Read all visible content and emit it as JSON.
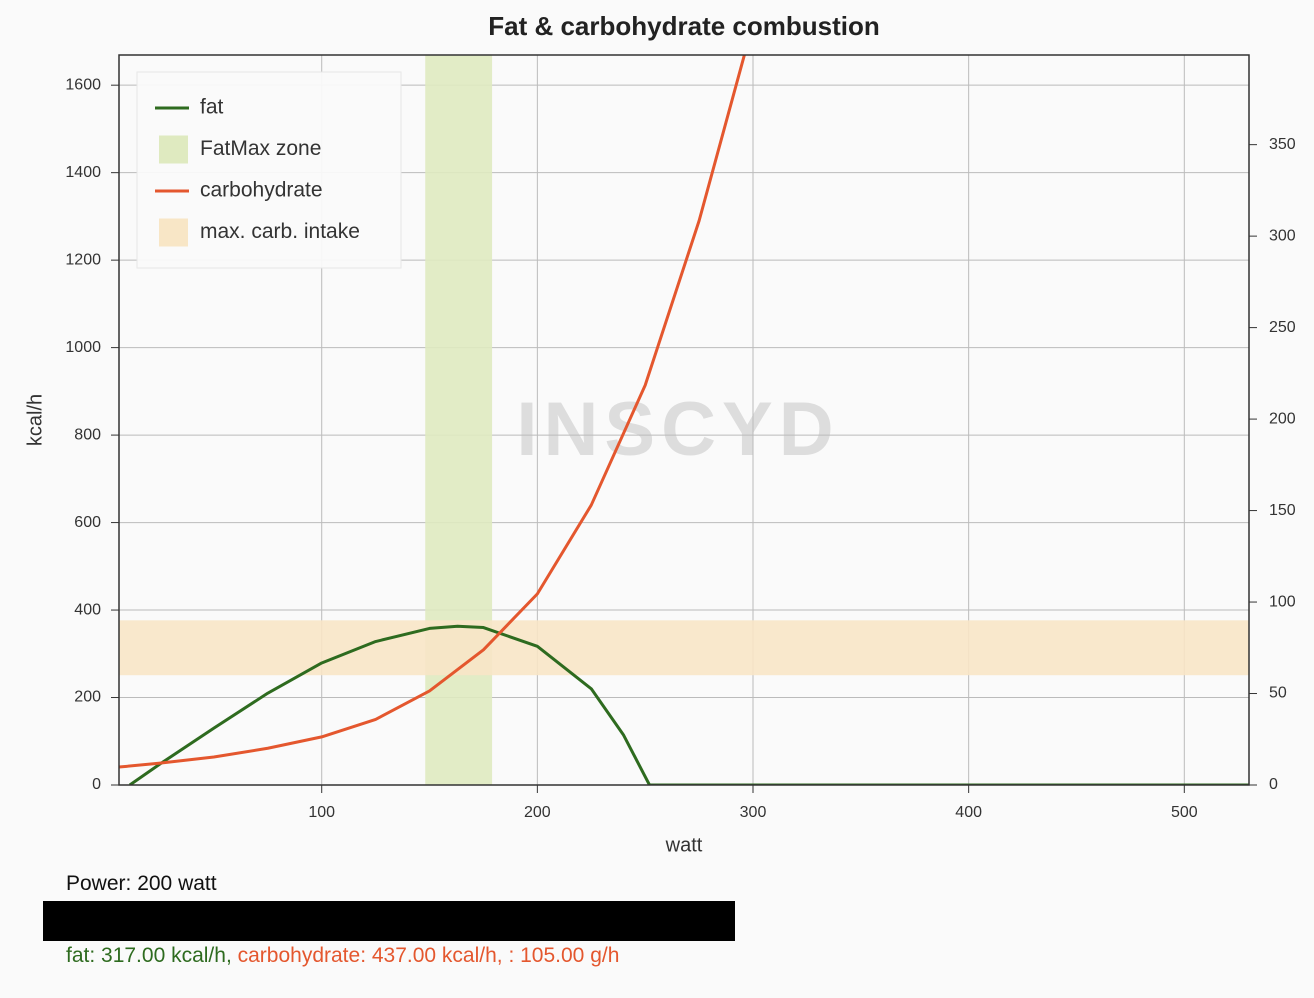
{
  "chart_data": {
    "type": "line",
    "title": "Fat & carbohydrate combustion",
    "x_label": "watt",
    "y_label": "kcal/h",
    "watermark": "INSCYD",
    "xlim": [
      6,
      530
    ],
    "xticks": [
      100,
      200,
      300,
      400,
      500
    ],
    "ylim": [
      0,
      1669
    ],
    "yticks": [
      0,
      200,
      400,
      600,
      800,
      1000,
      1200,
      1400,
      1600
    ],
    "y2lim": [
      0,
      399
    ],
    "y2ticks": [
      0,
      50,
      100,
      150,
      200,
      250,
      300,
      350
    ],
    "grid": true,
    "legend": "upper left",
    "series": [
      {
        "name": "fat",
        "color": "#2e6b1f",
        "x": [
          11,
          25,
          50,
          75,
          100,
          125,
          150,
          163,
          175,
          200,
          225,
          240,
          252,
          300,
          400,
          530
        ],
        "values": [
          0,
          48,
          130,
          210,
          279,
          328,
          358,
          363,
          360,
          317,
          220,
          114,
          0,
          0,
          0,
          0
        ]
      },
      {
        "name": "carbohydrate",
        "color": "#e4572e",
        "x": [
          6,
          25,
          50,
          75,
          100,
          125,
          150,
          175,
          200,
          225,
          250,
          275,
          296
        ],
        "values": [
          41,
          50,
          64,
          84,
          110,
          150,
          215,
          309,
          437,
          640,
          914,
          1290,
          1669
        ]
      }
    ],
    "zones": [
      {
        "name": "FatMax zone",
        "color": "#dfeac0",
        "xrange": [
          148,
          179
        ]
      },
      {
        "name": "max. carb. intake",
        "color": "#f8e6c6",
        "axis": "y2",
        "yrange": [
          60,
          90
        ]
      }
    ]
  },
  "readout": {
    "power": "Power: 200 watt",
    "fat": "fat: 317.00 kcal/h,",
    "carbohydrate": "carbohydrate: 437.00 kcal/h, : 105.00 g/h"
  }
}
